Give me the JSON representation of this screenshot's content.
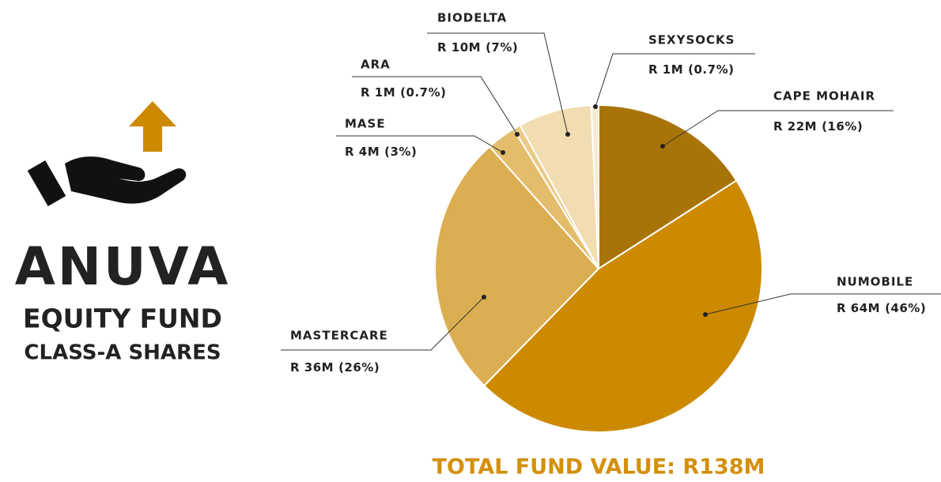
{
  "chart_data": {
    "type": "pie",
    "title": "ANUVA",
    "subtitle": "EQUITY FUND",
    "caption": "CLASS-A SHARES",
    "footer": "TOTAL FUND VALUE:  R138M",
    "categories": [
      "CAPE MOHAIR",
      "NUMOBILE",
      "MASTERCARE",
      "MASE",
      "ARA",
      "BIODELTA",
      "SEXYSOCKS"
    ],
    "values": [
      22,
      64,
      36,
      4,
      1,
      10,
      1
    ],
    "value_labels": [
      "R 22M",
      "R 64M",
      "R 36M",
      "R 4M",
      "R 1M",
      "R 10M",
      "R 1M"
    ],
    "share_labels": [
      "(16%)",
      "(46%)",
      "(26%)",
      "(3%)",
      "(0.7%)",
      "(7%)",
      "(0.7%)"
    ],
    "colors": [
      "#a8740a",
      "#cc8a00",
      "#dcae52",
      "#e3bd6c",
      "#ebcb8a",
      "#f2dcb2",
      "#f7ead0"
    ]
  }
}
